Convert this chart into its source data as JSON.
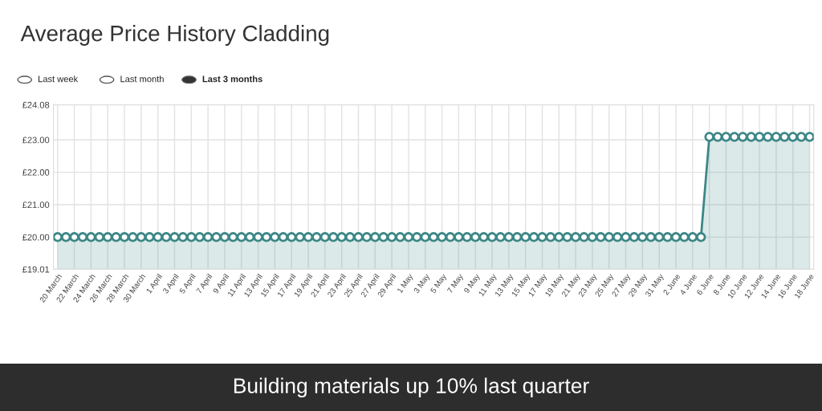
{
  "chart_data": {
    "type": "area",
    "title": "Average Price History Cladding",
    "categories": [
      "20 March",
      null,
      "22 March",
      null,
      "24 March",
      null,
      "26 March",
      null,
      "28 March",
      null,
      "30 March",
      null,
      "1 April",
      null,
      "3 April",
      null,
      "5 April",
      null,
      "7 April",
      null,
      "9 April",
      null,
      "11 April",
      null,
      "13 April",
      null,
      "15 April",
      null,
      "17 April",
      null,
      "19 April",
      null,
      "21 April",
      null,
      "23 April",
      null,
      "25 April",
      null,
      "27 April",
      null,
      "29 April",
      null,
      "1 May",
      null,
      "3 May",
      null,
      "5 May",
      null,
      "7 May",
      null,
      "9 May",
      null,
      "11 May",
      null,
      "13 May",
      null,
      "15 May",
      null,
      "17 May",
      null,
      "19 May",
      null,
      "21 May",
      null,
      "23 May",
      null,
      "25 May",
      null,
      "27 May",
      null,
      "29 May",
      null,
      "31 May",
      null,
      "2 June",
      null,
      "4 June",
      null,
      "6 June",
      null,
      "8 June",
      null,
      "10 June",
      null,
      "12 June",
      null,
      "14 June",
      null,
      "16 June",
      null,
      "18 June"
    ],
    "series": [
      {
        "color": "#3d8787",
        "values": [
          20.0,
          20.0,
          20.0,
          20.0,
          20.0,
          20.0,
          20.0,
          20.0,
          20.0,
          20.0,
          20.0,
          20.0,
          20.0,
          20.0,
          20.0,
          20.0,
          20.0,
          20.0,
          20.0,
          20.0,
          20.0,
          20.0,
          20.0,
          20.0,
          20.0,
          20.0,
          20.0,
          20.0,
          20.0,
          20.0,
          20.0,
          20.0,
          20.0,
          20.0,
          20.0,
          20.0,
          20.0,
          20.0,
          20.0,
          20.0,
          20.0,
          20.0,
          20.0,
          20.0,
          20.0,
          20.0,
          20.0,
          20.0,
          20.0,
          20.0,
          20.0,
          20.0,
          20.0,
          20.0,
          20.0,
          20.0,
          20.0,
          20.0,
          20.0,
          20.0,
          20.0,
          20.0,
          20.0,
          20.0,
          20.0,
          20.0,
          20.0,
          20.0,
          20.0,
          20.0,
          20.0,
          20.0,
          20.0,
          20.0,
          20.0,
          20.0,
          20.0,
          20.0,
          23.09,
          23.09,
          23.09,
          23.09,
          23.09,
          23.09,
          23.09,
          23.09,
          23.09,
          23.09,
          23.09,
          23.09,
          23.09
        ]
      }
    ],
    "ylim": [
      19.01,
      24.08
    ],
    "yticks": [
      {
        "value": 19.01,
        "label": "£19.01"
      },
      {
        "value": 20.0,
        "label": "£20.00"
      },
      {
        "value": 21.0,
        "label": "£21.00"
      },
      {
        "value": 22.0,
        "label": "£22.00"
      },
      {
        "value": 23.0,
        "label": "£23.00"
      },
      {
        "value": 24.08,
        "label": "£24.08"
      }
    ],
    "grid": true,
    "marker": "circle",
    "line_style": "solid",
    "annotations": [
      "Last week",
      "Last month",
      "Last 3 months",
      "Building materials up 10% last quarter"
    ]
  }
}
